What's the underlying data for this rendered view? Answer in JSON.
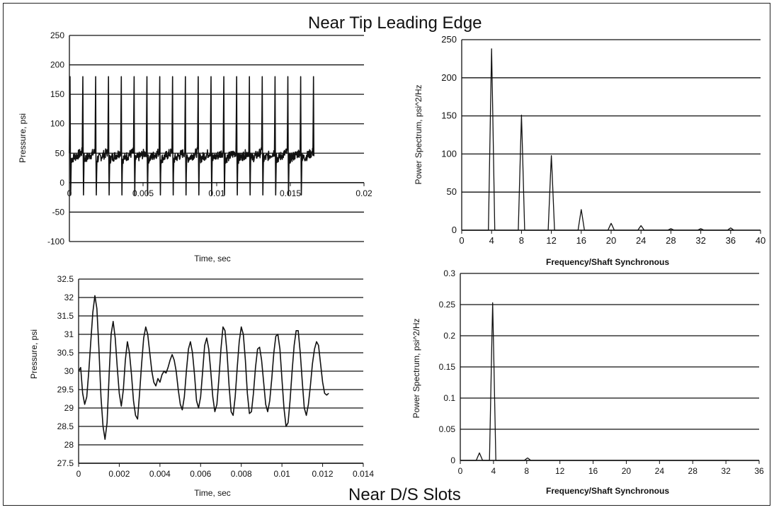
{
  "titles": {
    "top": "Near Tip Leading Edge",
    "bottom": "Near D/S Slots"
  },
  "colors": {
    "background": "#ffffff",
    "line": "#111111",
    "grid": "#111111"
  },
  "chart_data": [
    {
      "id": "tip-pressure-time",
      "type": "line",
      "title": "",
      "xlabel": "Time, sec",
      "ylabel": "Pressure, psi",
      "xlim": [
        0,
        0.02
      ],
      "ylim": [
        -100,
        250
      ],
      "xticks": [
        0,
        0.005,
        0.01,
        0.015,
        0.02
      ],
      "xtick_labels": [
        "0",
        "0.005",
        "0.01",
        "0.015",
        "0.02"
      ],
      "yticks": [
        -100,
        -50,
        0,
        50,
        100,
        150,
        200,
        250
      ],
      "ytick_labels": [
        "-100",
        "-50",
        "0",
        "50",
        "100",
        "150",
        "200",
        "250"
      ],
      "x_axis_at_y": 0,
      "grid": "horizontal",
      "legend": "none",
      "series": [
        {
          "waveform": "periodic spikes",
          "x_start": 0,
          "x_end": 0.0166,
          "period": 0.00087,
          "baseline": 50,
          "peak_max": 180,
          "trough_min": -35,
          "noise_amplitude": 8
        }
      ]
    },
    {
      "id": "tip-power-spectrum",
      "type": "line",
      "title": "",
      "xlabel": "Frequency/Shaft Synchronous",
      "ylabel": "Power Spectrum, psi^2/Hz",
      "xlim": [
        0,
        40
      ],
      "ylim": [
        0,
        250
      ],
      "xticks": [
        0,
        4,
        8,
        12,
        16,
        20,
        24,
        28,
        32,
        36,
        40
      ],
      "xtick_labels": [
        "0",
        "4",
        "8",
        "12",
        "16",
        "20",
        "24",
        "28",
        "32",
        "36",
        "40"
      ],
      "yticks": [
        0,
        50,
        100,
        150,
        200,
        250
      ],
      "ytick_labels": [
        "0",
        "50",
        "100",
        "150",
        "200",
        "250"
      ],
      "grid": "horizontal",
      "legend": "none",
      "peaks": [
        {
          "x": 4,
          "y": 238
        },
        {
          "x": 8,
          "y": 151
        },
        {
          "x": 12,
          "y": 98
        },
        {
          "x": 16,
          "y": 27
        },
        {
          "x": 20,
          "y": 9
        },
        {
          "x": 24,
          "y": 6
        },
        {
          "x": 28,
          "y": 2
        },
        {
          "x": 32,
          "y": 2
        },
        {
          "x": 36,
          "y": 3
        }
      ]
    },
    {
      "id": "slots-pressure-time",
      "type": "line",
      "title": "",
      "xlabel": "Time, sec",
      "ylabel": "Pressure, psi",
      "xlim": [
        0,
        0.014
      ],
      "ylim": [
        27.5,
        32.5
      ],
      "xticks": [
        0,
        0.002,
        0.004,
        0.006,
        0.008,
        0.01,
        0.012,
        0.014
      ],
      "xtick_labels": [
        "0",
        "0.002",
        "0.004",
        "0.006",
        "0.008",
        "0.01",
        "0.012",
        "0.014"
      ],
      "yticks": [
        27.5,
        28,
        28.5,
        29,
        29.5,
        30,
        30.5,
        31,
        31.5,
        32,
        32.5
      ],
      "ytick_labels": [
        "27.5",
        "28",
        "28.5",
        "29",
        "29.5",
        "30",
        "30.5",
        "31",
        "31.5",
        "32",
        "32.5"
      ],
      "grid": "horizontal",
      "legend": "none",
      "series": [
        {
          "x": [
            0,
            0.0001,
            0.0002,
            0.0003,
            0.0004,
            0.0005,
            0.0006,
            0.0007,
            0.0008,
            0.0009,
            0.001,
            0.0011,
            0.0012,
            0.0013,
            0.0014,
            0.0015,
            0.0016,
            0.0017,
            0.0018,
            0.0019,
            0.002,
            0.0021,
            0.0022,
            0.0023,
            0.0024,
            0.0025,
            0.0026,
            0.0027,
            0.0028,
            0.0029,
            0.003,
            0.0031,
            0.0032,
            0.0033,
            0.0034,
            0.0035,
            0.0036,
            0.0037,
            0.0038,
            0.0039,
            0.004,
            0.0041,
            0.0042,
            0.0043,
            0.0044,
            0.0045,
            0.0046,
            0.0047,
            0.0048,
            0.0049,
            0.005,
            0.0051,
            0.0052,
            0.0053,
            0.0054,
            0.0055,
            0.0056,
            0.0057,
            0.0058,
            0.0059,
            0.006,
            0.0061,
            0.0062,
            0.0063,
            0.0064,
            0.0065,
            0.0066,
            0.0067,
            0.0068,
            0.0069,
            0.007,
            0.0071,
            0.0072,
            0.0073,
            0.0074,
            0.0075,
            0.0076,
            0.0077,
            0.0078,
            0.0079,
            0.008,
            0.0081,
            0.0082,
            0.0083,
            0.0084,
            0.0085,
            0.0086,
            0.0087,
            0.0088,
            0.0089,
            0.009,
            0.0091,
            0.0092,
            0.0093,
            0.0094,
            0.0095,
            0.0096,
            0.0097,
            0.0098,
            0.0099,
            0.01,
            0.0101,
            0.0102,
            0.0103,
            0.0104,
            0.0105,
            0.0106,
            0.0107,
            0.0108,
            0.0109,
            0.011,
            0.0111,
            0.0112,
            0.0113,
            0.0114,
            0.0115,
            0.0116,
            0.0117,
            0.0118,
            0.0119,
            0.012,
            0.0121,
            0.0122,
            0.0123
          ],
          "values": [
            30.0,
            30.1,
            29.4,
            29.1,
            29.3,
            30.0,
            30.8,
            31.6,
            32.05,
            31.7,
            30.6,
            29.3,
            28.5,
            28.15,
            28.6,
            29.9,
            31.0,
            31.35,
            30.9,
            30.1,
            29.4,
            29.05,
            29.5,
            30.3,
            30.8,
            30.5,
            29.9,
            29.2,
            28.8,
            28.7,
            29.4,
            30.2,
            30.9,
            31.2,
            31.0,
            30.5,
            30.0,
            29.7,
            29.6,
            29.8,
            29.7,
            29.9,
            30.0,
            29.95,
            30.1,
            30.3,
            30.45,
            30.3,
            30.0,
            29.5,
            29.1,
            28.95,
            29.3,
            30.0,
            30.6,
            30.8,
            30.5,
            29.9,
            29.2,
            29.0,
            29.3,
            30.0,
            30.7,
            30.9,
            30.6,
            30.0,
            29.3,
            28.9,
            29.1,
            29.8,
            30.6,
            31.2,
            31.1,
            30.5,
            29.6,
            28.9,
            28.8,
            29.3,
            30.1,
            30.8,
            31.2,
            31.0,
            30.3,
            29.4,
            28.85,
            28.9,
            29.4,
            30.1,
            30.6,
            30.65,
            30.3,
            29.7,
            29.1,
            28.9,
            29.2,
            29.8,
            30.5,
            30.95,
            31.0,
            30.6,
            29.8,
            29.0,
            28.5,
            28.6,
            29.2,
            30.0,
            30.7,
            31.1,
            31.1,
            30.5,
            29.7,
            29.0,
            28.8,
            29.1,
            29.6,
            30.2,
            30.6,
            30.8,
            30.7,
            30.2,
            29.7,
            29.4,
            29.35,
            29.4
          ]
        }
      ]
    },
    {
      "id": "slots-power-spectrum",
      "type": "line",
      "title": "",
      "xlabel": "Frequency/Shaft Synchronous",
      "ylabel": "Power Spectrum, psi^2/Hz",
      "xlim": [
        0,
        36
      ],
      "ylim": [
        0,
        0.3
      ],
      "xticks": [
        0,
        4,
        8,
        12,
        16,
        20,
        24,
        28,
        32,
        36
      ],
      "xtick_labels": [
        "0",
        "4",
        "8",
        "12",
        "16",
        "20",
        "24",
        "28",
        "32",
        "36"
      ],
      "yticks": [
        0,
        0.05,
        0.1,
        0.15,
        0.2,
        0.25,
        0.3
      ],
      "ytick_labels": [
        "0",
        "0.05",
        "0.1",
        "0.15",
        "0.2",
        "0.25",
        "0.3"
      ],
      "grid": "horizontal",
      "legend": "none",
      "peaks": [
        {
          "x": 2.3,
          "y": 0.012
        },
        {
          "x": 3.9,
          "y": 0.253
        },
        {
          "x": 8.1,
          "y": 0.004
        }
      ]
    }
  ]
}
